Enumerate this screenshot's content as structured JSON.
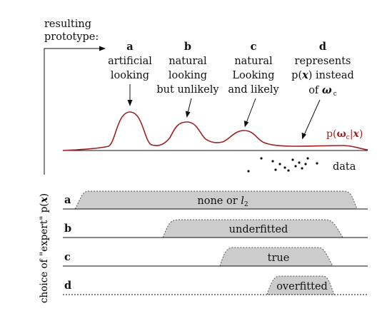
{
  "header": {
    "line1": "resulting",
    "line2": "prototype:"
  },
  "columns": [
    {
      "key": "a",
      "lines": [
        "artificial",
        "looking"
      ]
    },
    {
      "key": "b",
      "lines": [
        "natural",
        "looking",
        "but unlikely"
      ]
    },
    {
      "key": "c",
      "lines": [
        "natural",
        "Looking",
        "and likely"
      ]
    },
    {
      "key": "d",
      "lines": [
        "represents"
      ],
      "line2_prefix": "p(",
      "line2_var": "x",
      "line2_suffix": ") instead",
      "line3_prefix": "of ",
      "line3_var": "ω",
      "line3_sub": "c"
    }
  ],
  "curve_label": {
    "prefix": "p(",
    "omega": "ω",
    "sub": "c",
    "bar": "|",
    "var": "x",
    "suffix": ")"
  },
  "data_label": "data",
  "axis_label": {
    "prefix": "choice of \"expert\" p(",
    "var": "x",
    "suffix": ")"
  },
  "rows": [
    {
      "key": "a",
      "label": "none or ",
      "label_math": "l",
      "label_sub": "2"
    },
    {
      "key": "b",
      "label": "underfitted"
    },
    {
      "key": "c",
      "label": "true"
    },
    {
      "key": "d",
      "label": "overfitted"
    }
  ],
  "colors": {
    "curve": "#a02020",
    "fill": "#cccccc",
    "line": "#111111"
  }
}
